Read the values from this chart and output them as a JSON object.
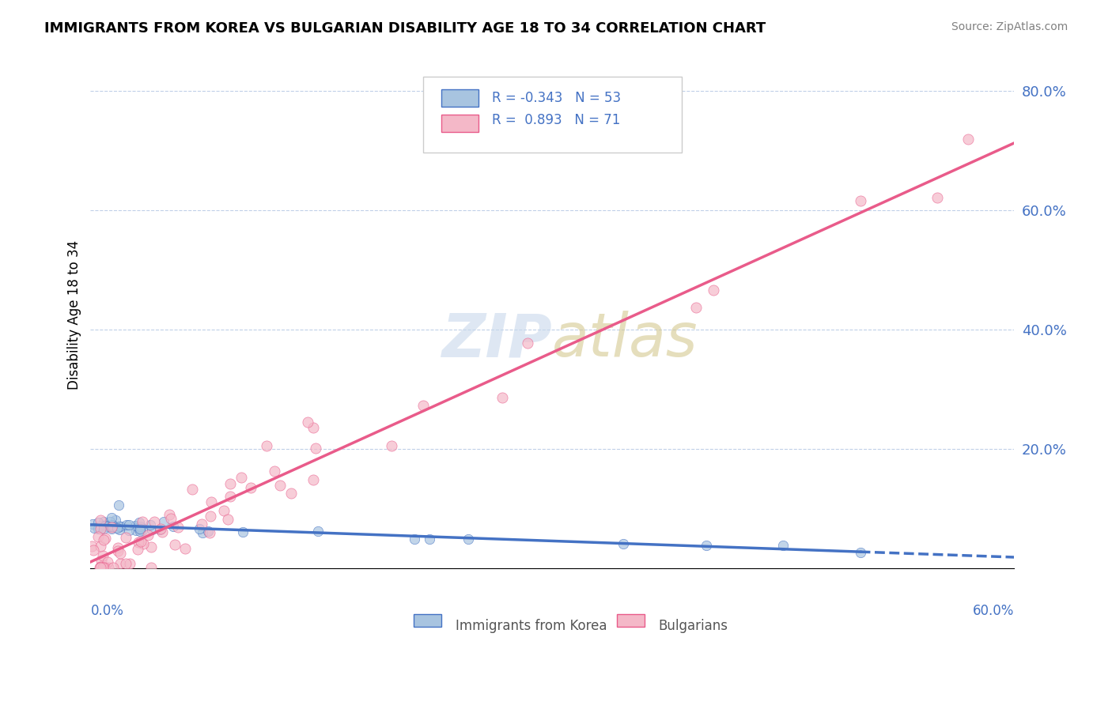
{
  "title": "IMMIGRANTS FROM KOREA VS BULGARIAN DISABILITY AGE 18 TO 34 CORRELATION CHART",
  "source": "Source: ZipAtlas.com",
  "ylabel_label": "Disability Age 18 to 34",
  "x_min": 0.0,
  "x_max": 0.6,
  "y_min": 0.0,
  "y_max": 0.85,
  "y_ticks": [
    0.0,
    0.2,
    0.4,
    0.6,
    0.8
  ],
  "korea_color": "#a8c4e0",
  "korea_line_color": "#4472c4",
  "bulgarian_color": "#f4b8c8",
  "bulgarian_line_color": "#e95b8a"
}
